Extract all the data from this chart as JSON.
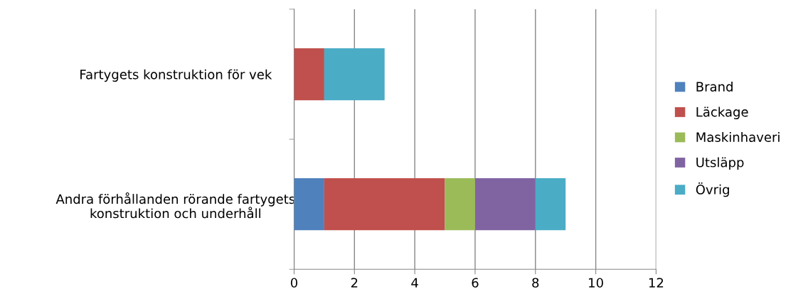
{
  "chart_data": {
    "type": "bar",
    "orientation": "horizontal",
    "stacked": true,
    "categories": [
      "Fartygets konstruktion för vek",
      "Andra förhållanden rörande fartygets\nkonstruktion och underhåll"
    ],
    "series": [
      {
        "name": "Brand",
        "color": "#4f81bd",
        "values": [
          0,
          1
        ]
      },
      {
        "name": "Läckage",
        "color": "#c0504d",
        "values": [
          1,
          4
        ]
      },
      {
        "name": "Maskinhaveri",
        "color": "#9bbb59",
        "values": [
          0,
          1
        ]
      },
      {
        "name": "Utsläpp",
        "color": "#8064a2",
        "values": [
          0,
          2
        ]
      },
      {
        "name": "Övrig",
        "color": "#4bacc6",
        "values": [
          2,
          1
        ]
      }
    ],
    "xlim": [
      0,
      12
    ],
    "xticks": [
      0,
      2,
      4,
      6,
      8,
      10,
      12
    ],
    "grid": "x",
    "legend": "right"
  }
}
